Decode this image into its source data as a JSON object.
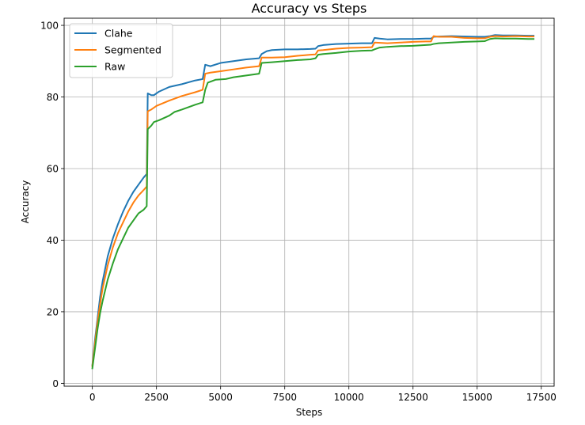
{
  "chart_data": {
    "type": "line",
    "title": "Accuracy vs Steps",
    "xlabel": "Steps",
    "ylabel": "Accuracy",
    "xlim": [
      -1100,
      18000
    ],
    "ylim": [
      -0.8,
      102
    ],
    "xticks": [
      0,
      2500,
      5000,
      7500,
      10000,
      12500,
      15000,
      17500
    ],
    "xtick_labels": [
      "0",
      "2500",
      "5000",
      "7500",
      "10000",
      "12500",
      "15000",
      "17500"
    ],
    "yticks": [
      0,
      20,
      40,
      60,
      80,
      100
    ],
    "ytick_labels": [
      "0",
      "20",
      "40",
      "60",
      "80",
      "100"
    ],
    "grid": true,
    "legend_position": "upper-left",
    "series": [
      {
        "name": "Clahe",
        "color": "#1f77b4",
        "points": [
          [
            0,
            5
          ],
          [
            100,
            12
          ],
          [
            200,
            18
          ],
          [
            300,
            24
          ],
          [
            400,
            28.5
          ],
          [
            600,
            35.5
          ],
          [
            800,
            40.5
          ],
          [
            1000,
            44.5
          ],
          [
            1200,
            48
          ],
          [
            1400,
            51
          ],
          [
            1600,
            53.5
          ],
          [
            1800,
            55.5
          ],
          [
            2000,
            57.5
          ],
          [
            2120,
            58.5
          ],
          [
            2160,
            81
          ],
          [
            2300,
            80.5
          ],
          [
            2400,
            80.5
          ],
          [
            2600,
            81.5
          ],
          [
            3000,
            82.8
          ],
          [
            3500,
            83.6
          ],
          [
            4000,
            84.6
          ],
          [
            4300,
            85
          ],
          [
            4400,
            89
          ],
          [
            4600,
            88.6
          ],
          [
            5000,
            89.5
          ],
          [
            5500,
            90
          ],
          [
            6000,
            90.5
          ],
          [
            6500,
            90.8
          ],
          [
            6600,
            92
          ],
          [
            6800,
            92.8
          ],
          [
            7000,
            93.1
          ],
          [
            7500,
            93.3
          ],
          [
            8000,
            93.3
          ],
          [
            8500,
            93.4
          ],
          [
            8700,
            93.5
          ],
          [
            8800,
            94.2
          ],
          [
            9000,
            94.5
          ],
          [
            9500,
            94.8
          ],
          [
            10000,
            94.9
          ],
          [
            10500,
            95
          ],
          [
            10900,
            95
          ],
          [
            11000,
            96.5
          ],
          [
            11200,
            96.3
          ],
          [
            11500,
            96.1
          ],
          [
            12000,
            96.2
          ],
          [
            12500,
            96.2
          ],
          [
            13000,
            96.3
          ],
          [
            13200,
            96.3
          ],
          [
            13300,
            96.8
          ],
          [
            13500,
            96.9
          ],
          [
            14000,
            97
          ],
          [
            14500,
            96.9
          ],
          [
            15000,
            96.8
          ],
          [
            15300,
            96.8
          ],
          [
            15500,
            97
          ],
          [
            15700,
            97.3
          ],
          [
            16000,
            97.2
          ],
          [
            16500,
            97.2
          ],
          [
            17000,
            97.1
          ],
          [
            17200,
            97.1
          ]
        ]
      },
      {
        "name": "Segmented",
        "color": "#ff7f0e",
        "points": [
          [
            0,
            4.8
          ],
          [
            100,
            11
          ],
          [
            200,
            17
          ],
          [
            300,
            22
          ],
          [
            400,
            26.5
          ],
          [
            600,
            33
          ],
          [
            800,
            38
          ],
          [
            1000,
            42
          ],
          [
            1200,
            45
          ],
          [
            1400,
            48
          ],
          [
            1600,
            50.5
          ],
          [
            1800,
            52.5
          ],
          [
            2000,
            54
          ],
          [
            2120,
            55
          ],
          [
            2160,
            76
          ],
          [
            2300,
            76.5
          ],
          [
            2500,
            77.5
          ],
          [
            3000,
            79
          ],
          [
            3500,
            80.3
          ],
          [
            4000,
            81.3
          ],
          [
            4300,
            82
          ],
          [
            4400,
            86.5
          ],
          [
            4600,
            86.8
          ],
          [
            5000,
            87.2
          ],
          [
            5500,
            87.7
          ],
          [
            6000,
            88.2
          ],
          [
            6500,
            88.6
          ],
          [
            6600,
            91
          ],
          [
            7000,
            91
          ],
          [
            7500,
            91.1
          ],
          [
            8000,
            91.5
          ],
          [
            8500,
            91.8
          ],
          [
            8700,
            91.9
          ],
          [
            8800,
            93
          ],
          [
            9000,
            93.1
          ],
          [
            9500,
            93.5
          ],
          [
            10000,
            93.7
          ],
          [
            10500,
            93.8
          ],
          [
            10900,
            93.9
          ],
          [
            11000,
            95.2
          ],
          [
            11500,
            95
          ],
          [
            12000,
            95.2
          ],
          [
            12500,
            95.4
          ],
          [
            13000,
            95.5
          ],
          [
            13200,
            95.5
          ],
          [
            13300,
            97
          ],
          [
            13500,
            96.8
          ],
          [
            14000,
            96.8
          ],
          [
            14500,
            96.5
          ],
          [
            15000,
            96.4
          ],
          [
            15300,
            96.4
          ],
          [
            15500,
            96.8
          ],
          [
            15700,
            97
          ],
          [
            16000,
            96.9
          ],
          [
            16500,
            97
          ],
          [
            17000,
            96.9
          ],
          [
            17200,
            96.9
          ]
        ]
      },
      {
        "name": "Raw",
        "color": "#2ca02c",
        "points": [
          [
            0,
            4.2
          ],
          [
            100,
            9.5
          ],
          [
            200,
            15
          ],
          [
            300,
            19.5
          ],
          [
            400,
            23
          ],
          [
            600,
            29
          ],
          [
            800,
            33.5
          ],
          [
            1000,
            37.5
          ],
          [
            1200,
            40.5
          ],
          [
            1400,
            43.5
          ],
          [
            1600,
            45.5
          ],
          [
            1800,
            47.5
          ],
          [
            2000,
            48.5
          ],
          [
            2120,
            49.5
          ],
          [
            2160,
            71
          ],
          [
            2300,
            72
          ],
          [
            2400,
            73
          ],
          [
            2600,
            73.5
          ],
          [
            3000,
            74.8
          ],
          [
            3200,
            75.8
          ],
          [
            3500,
            76.5
          ],
          [
            4000,
            77.8
          ],
          [
            4300,
            78.5
          ],
          [
            4400,
            82
          ],
          [
            4500,
            84
          ],
          [
            4800,
            84.8
          ],
          [
            5200,
            85
          ],
          [
            5500,
            85.5
          ],
          [
            6000,
            86
          ],
          [
            6500,
            86.5
          ],
          [
            6600,
            89.5
          ],
          [
            7000,
            89.7
          ],
          [
            7500,
            90
          ],
          [
            8000,
            90.3
          ],
          [
            8500,
            90.5
          ],
          [
            8700,
            90.8
          ],
          [
            8800,
            91.8
          ],
          [
            9000,
            92
          ],
          [
            9500,
            92.3
          ],
          [
            10000,
            92.7
          ],
          [
            10500,
            92.9
          ],
          [
            10900,
            93
          ],
          [
            11000,
            93.3
          ],
          [
            11200,
            93.8
          ],
          [
            11500,
            94
          ],
          [
            12000,
            94.2
          ],
          [
            12500,
            94.3
          ],
          [
            13000,
            94.5
          ],
          [
            13200,
            94.6
          ],
          [
            13300,
            94.8
          ],
          [
            13500,
            95
          ],
          [
            14000,
            95.2
          ],
          [
            14500,
            95.4
          ],
          [
            15000,
            95.5
          ],
          [
            15300,
            95.6
          ],
          [
            15500,
            96.2
          ],
          [
            15700,
            96.4
          ],
          [
            16000,
            96.3
          ],
          [
            16500,
            96.3
          ],
          [
            17000,
            96.2
          ],
          [
            17200,
            96.2
          ]
        ]
      }
    ]
  }
}
